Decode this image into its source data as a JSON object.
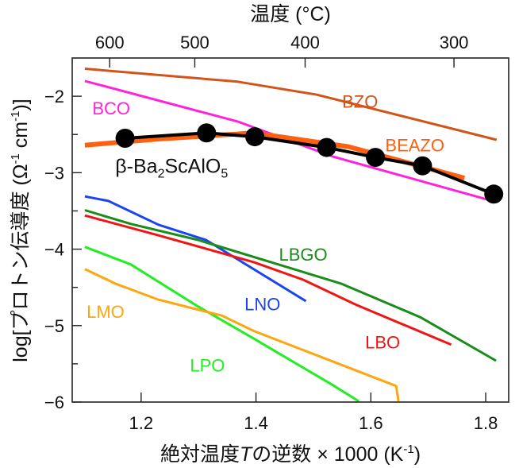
{
  "chart_data": {
    "type": "line",
    "title": "",
    "top_axis": {
      "label": "温度 (°C)",
      "ticks_celsius": [
        600,
        500,
        400,
        300
      ],
      "tick_labels": [
        "600",
        "500",
        "400",
        "300"
      ]
    },
    "xlabel_parts": [
      "絶対温度",
      "T",
      "の逆数 × 1000 (K",
      "-1",
      ")"
    ],
    "ylabel_parts": [
      "log[プロトン伝導度 (Ω",
      "-1",
      " cm",
      "-1",
      ")]"
    ],
    "xlim": [
      1.08,
      1.84
    ],
    "ylim": [
      -6,
      -1.5
    ],
    "x_ticks": [
      1.2,
      1.4,
      1.6,
      1.8
    ],
    "x_tick_labels": [
      "1.2",
      "1.4",
      "1.6",
      "1.8"
    ],
    "x_minor_ticks": [
      1.1,
      1.3,
      1.5,
      1.7
    ],
    "y_ticks": [
      -2,
      -3,
      -4,
      -5,
      -6
    ],
    "y_tick_labels": [
      "−2",
      "−3",
      "−4",
      "−5",
      "−6"
    ],
    "y_minor_ticks": [
      -2.5,
      -3.5,
      -4.5,
      -5.5
    ],
    "grid": false,
    "series": [
      {
        "name": "BZO",
        "label": "BZO",
        "color": "#d2541a",
        "width": 3,
        "x": [
          1.102,
          1.368,
          1.506,
          1.819
        ],
        "y": [
          -1.64,
          -1.81,
          -1.98,
          -2.57
        ]
      },
      {
        "name": "BCO",
        "label": "BCO",
        "color": "#ff22dd",
        "width": 3,
        "x": [
          1.102,
          1.368,
          1.534,
          1.812
        ],
        "y": [
          -1.8,
          -2.33,
          -2.79,
          -3.37
        ]
      },
      {
        "name": "BEAZO",
        "label": "BEAZO",
        "color": "#ff6010",
        "width": 6,
        "x": [
          1.102,
          1.23,
          1.396,
          1.561,
          1.763
        ],
        "y": [
          -2.64,
          -2.56,
          -2.48,
          -2.66,
          -3.07
        ]
      },
      {
        "name": "LNO",
        "label": "LNO",
        "color": "#1a44f0",
        "width": 3,
        "x": [
          1.102,
          1.143,
          1.23,
          1.313,
          1.487
        ],
        "y": [
          -3.31,
          -3.37,
          -3.68,
          -3.88,
          -4.68
        ]
      },
      {
        "name": "LBGO",
        "label": "LBGO",
        "color": "#1a8c1a",
        "width": 3,
        "x": [
          1.102,
          1.182,
          1.299,
          1.548,
          1.686,
          1.818
        ],
        "y": [
          -3.49,
          -3.67,
          -3.88,
          -4.45,
          -4.89,
          -5.46
        ]
      },
      {
        "name": "LBO",
        "label": "LBO",
        "color": "#f01414",
        "width": 3,
        "x": [
          1.102,
          1.23,
          1.396,
          1.482,
          1.575,
          1.74
        ],
        "y": [
          -3.56,
          -3.82,
          -4.17,
          -4.4,
          -4.73,
          -5.25
        ]
      },
      {
        "name": "LPO",
        "label": "LPO",
        "color": "#22ee22",
        "width": 3,
        "x": [
          1.102,
          1.182,
          1.299,
          1.396,
          1.534,
          1.579
        ],
        "y": [
          -3.97,
          -4.2,
          -4.75,
          -5.17,
          -5.78,
          -5.99
        ]
      },
      {
        "name": "LMO",
        "label": "LMO",
        "color": "#ffa510",
        "width": 3,
        "x": [
          1.102,
          1.155,
          1.23,
          1.341,
          1.396,
          1.644,
          1.648
        ],
        "y": [
          -4.26,
          -4.45,
          -4.66,
          -4.87,
          -5.07,
          -5.79,
          -5.99
        ]
      },
      {
        "name": "beta-Ba2ScAlO5",
        "label": "β-Ba2ScAlO5",
        "color": "#000000",
        "width": 4,
        "markers": true,
        "x": [
          1.172,
          1.314,
          1.398,
          1.523,
          1.608,
          1.69,
          1.814
        ],
        "y": [
          -2.55,
          -2.48,
          -2.53,
          -2.67,
          -2.8,
          -2.91,
          -3.28
        ]
      }
    ],
    "annotations": [
      {
        "text": "BZO",
        "series": "BZO",
        "x": 1.55,
        "y": -2.15,
        "color": "#d2541a"
      },
      {
        "text": "BCO",
        "series": "BCO",
        "x": 1.115,
        "y": -2.24,
        "color": "#ff22dd"
      },
      {
        "text": "BEAZO",
        "series": "BEAZO",
        "x": 1.625,
        "y": -2.72,
        "color": "#ff6010"
      },
      {
        "text": "LNO",
        "series": "LNO",
        "x": 1.38,
        "y": -4.8,
        "color": "#1a44f0"
      },
      {
        "text": "LBGO",
        "series": "LBGO",
        "x": 1.44,
        "y": -4.15,
        "color": "#1a8c1a"
      },
      {
        "text": "LBO",
        "series": "LBO",
        "x": 1.59,
        "y": -5.3,
        "color": "#f01414"
      },
      {
        "text": "LPO",
        "series": "LPO",
        "x": 1.285,
        "y": -5.6,
        "color": "#22ee22"
      },
      {
        "text": "LMO",
        "series": "LMO",
        "x": 1.105,
        "y": -4.9,
        "color": "#ffa510"
      }
    ],
    "main_label": {
      "prefix": "β-Ba",
      "sub1": "2",
      "mid": "ScAlO",
      "sub2": "5",
      "x": 1.155,
      "y": -3.0
    }
  }
}
